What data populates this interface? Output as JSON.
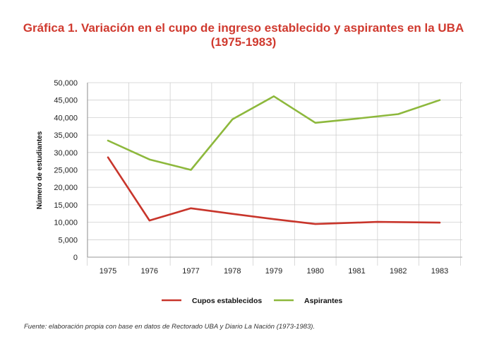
{
  "header": {
    "title_line1": "Gráfica 1. Variación en el cupo de ingreso establecido y aspirantes en la UBA",
    "title_line2": "(1975-1983)"
  },
  "chart_data": {
    "type": "line",
    "title": "Gráfica 1. Variación en el cupo de ingreso establecido y aspirantes en la UBA (1975-1983)",
    "xlabel": "",
    "ylabel": "Número de estudiantes",
    "categories": [
      "1975",
      "1976",
      "1977",
      "1978",
      "1979",
      "1980",
      "1981",
      "1982",
      "1983"
    ],
    "ylim": [
      0,
      50000
    ],
    "yticks": [
      0,
      5000,
      10000,
      15000,
      20000,
      25000,
      30000,
      35000,
      40000,
      45000,
      50000
    ],
    "ytick_labels": [
      "0",
      "5,000",
      "10,000",
      "15,000",
      "20,000",
      "25,000",
      "30,000",
      "35,000",
      "40,000",
      "45,000",
      "50,000"
    ],
    "grid": true,
    "legend_position": "bottom",
    "series": [
      {
        "name": "Cupos establecidos",
        "color": "#c8352b",
        "x": [
          1975,
          1976,
          1977,
          1978,
          1979,
          1980,
          1981,
          1981.5,
          1983
        ],
        "values": [
          28600,
          10500,
          14000,
          12400,
          10900,
          9500,
          9900,
          10100,
          9900
        ]
      },
      {
        "name": "Aspirantes",
        "color": "#8db83c",
        "x": [
          1975,
          1976,
          1977,
          1978,
          1979,
          1980,
          1981,
          1982,
          1983
        ],
        "values": [
          33400,
          28000,
          25000,
          39500,
          46100,
          38500,
          39700,
          41000,
          45000
        ]
      }
    ]
  },
  "footer": {
    "source": "Fuente: elaboración propia con base en datos de Rectorado UBA y Diario La Nación (1973-1983)."
  }
}
